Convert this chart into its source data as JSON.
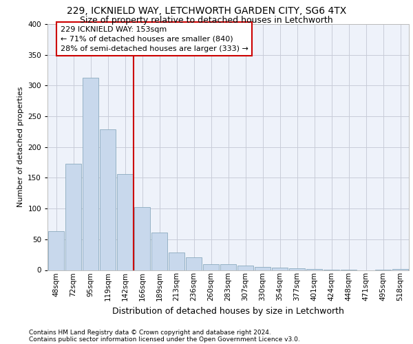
{
  "title1": "229, ICKNIELD WAY, LETCHWORTH GARDEN CITY, SG6 4TX",
  "title2": "Size of property relative to detached houses in Letchworth",
  "xlabel": "Distribution of detached houses by size in Letchworth",
  "ylabel": "Number of detached properties",
  "footnote1": "Contains HM Land Registry data © Crown copyright and database right 2024.",
  "footnote2": "Contains public sector information licensed under the Open Government Licence v3.0.",
  "categories": [
    "48sqm",
    "72sqm",
    "95sqm",
    "119sqm",
    "142sqm",
    "166sqm",
    "189sqm",
    "213sqm",
    "236sqm",
    "260sqm",
    "283sqm",
    "307sqm",
    "330sqm",
    "354sqm",
    "377sqm",
    "401sqm",
    "424sqm",
    "448sqm",
    "471sqm",
    "495sqm",
    "518sqm"
  ],
  "values": [
    63,
    173,
    313,
    229,
    156,
    102,
    61,
    28,
    21,
    9,
    10,
    7,
    5,
    4,
    3,
    2,
    1,
    1,
    0,
    1,
    2
  ],
  "bar_color": "#c8d8ec",
  "bar_edge_color": "#8aaabe",
  "vline_position": 4.5,
  "vline_color": "#cc0000",
  "annotation_line1": "229 ICKNIELD WAY: 153sqm",
  "annotation_line2": "← 71% of detached houses are smaller (840)",
  "annotation_line3": "28% of semi-detached houses are larger (333) →",
  "ylim": [
    0,
    400
  ],
  "yticks": [
    0,
    50,
    100,
    150,
    200,
    250,
    300,
    350,
    400
  ],
  "bg_color": "#eef2fa",
  "grid_color": "#c8ccd8",
  "title1_fontsize": 10,
  "title2_fontsize": 9,
  "ylabel_fontsize": 8,
  "xlabel_fontsize": 9,
  "tick_fontsize": 7.5,
  "footnote_fontsize": 6.5
}
